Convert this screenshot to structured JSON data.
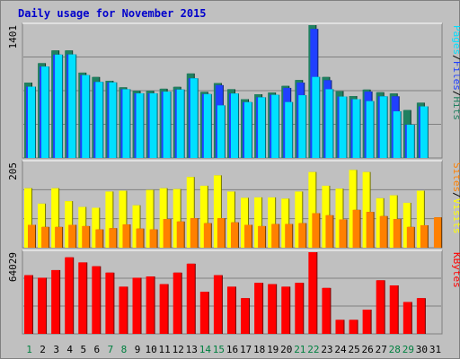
{
  "chart_data": {
    "type": "bar",
    "title": "Daily usage for November 2015",
    "categories": [
      "1",
      "2",
      "3",
      "4",
      "5",
      "6",
      "7",
      "8",
      "9",
      "10",
      "11",
      "12",
      "13",
      "14",
      "15",
      "16",
      "17",
      "18",
      "19",
      "20",
      "21",
      "22",
      "23",
      "24",
      "25",
      "26",
      "27",
      "28",
      "29",
      "30",
      "31"
    ],
    "weekend_days": [
      "1",
      "7",
      "8",
      "14",
      "15",
      "21",
      "22",
      "28",
      "29"
    ],
    "panels": [
      {
        "name": "hits-files-pages",
        "max_label": "1401",
        "ylim": [
          0,
          1401
        ],
        "legend": [
          "Pages",
          "/",
          "Files",
          "/",
          "Hits"
        ],
        "legend_colors": [
          "#00e0ff",
          "#000000",
          "#2040ff",
          "#000000",
          "#208060"
        ],
        "series": [
          {
            "name": "Hits",
            "color": "#208060",
            "values": [
              795,
              1000,
              1134,
              1134,
              900,
              854,
              814,
              745,
              708,
              708,
              730,
              750,
              891,
              697,
              790,
              725,
              620,
              672,
              690,
              760,
              822,
              1401,
              854,
              705,
              653,
              721,
              693,
              680,
              505,
              583,
              null
            ]
          },
          {
            "name": "Files",
            "color": "#2040ff",
            "values": [
              752,
              964,
              1090,
              1092,
              874,
              802,
              797,
              725,
              682,
              682,
              700,
              722,
              840,
              674,
              768,
              680,
              589,
              640,
              666,
              739,
              795,
              1361,
              820,
              648,
              620,
              700,
              650,
              650,
              351,
              544,
              null
            ]
          },
          {
            "name": "Pages",
            "color": "#00e0ff",
            "values": [
              752,
              964,
              1090,
              1092,
              874,
              802,
              797,
              725,
              682,
              682,
              700,
              722,
              840,
              674,
              555,
              680,
              589,
              640,
              666,
              590,
              662,
              855,
              725,
              648,
              620,
              600,
              650,
              492,
              351,
              544,
              null
            ]
          }
        ]
      },
      {
        "name": "visits-sites",
        "max_label": "205",
        "ylim": [
          0,
          205
        ],
        "legend": [
          "Sites",
          "/",
          "Visits"
        ],
        "legend_colors": [
          "#ff8000",
          "#000000",
          "#ffff00"
        ],
        "series": [
          {
            "name": "Visits",
            "color": "#ffff00",
            "values": [
              143,
              106,
              143,
              112,
              98,
              96,
              135,
              137,
              102,
              139,
              143,
              141,
              170,
              149,
              174,
              135,
              120,
              121,
              121,
              118,
              135,
              182,
              149,
              142,
              187,
              182,
              119,
              126,
              108,
              137,
              null
            ]
          },
          {
            "name": "Sites",
            "color": "#ff8000",
            "values": [
              55,
              50,
              50,
              55,
              52,
              44,
              47,
              56,
              46,
              44,
              69,
              63,
              71,
              59,
              71,
              61,
              55,
              52,
              57,
              57,
              59,
              83,
              78,
              68,
              91,
              86,
              76,
              69,
              50,
              54,
              73
            ]
          }
        ]
      },
      {
        "name": "kbytes",
        "max_label": "64029",
        "ylim": [
          0,
          64029
        ],
        "legend": [
          "KBytes"
        ],
        "legend_colors": [
          "#ff0000"
        ],
        "series": [
          {
            "name": "KBytes",
            "color": "#ff0000",
            "values": [
              46000,
              44000,
              50000,
              60000,
              56000,
              53000,
              48000,
              37000,
              44000,
              45000,
              39000,
              48000,
              55000,
              33000,
              46000,
              37000,
              28000,
              40000,
              39000,
              37000,
              40000,
              64029,
              36000,
              11000,
              11000,
              19000,
              42000,
              38000,
              25000,
              28000,
              null
            ]
          }
        ]
      }
    ]
  }
}
